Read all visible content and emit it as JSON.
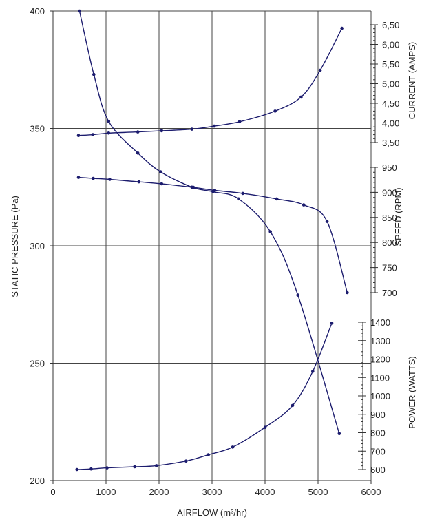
{
  "chart_data": {
    "type": "line",
    "title": "",
    "xlabel": "AIRFLOW (m³/hr)",
    "ylabel": "STATIC PRESSURE (Pa)",
    "grid": true,
    "x_axis": {
      "min": 0,
      "max": 6000,
      "ticks": [
        0,
        1000,
        2000,
        3000,
        4000,
        5000,
        6000
      ],
      "tick_labels": [
        "0",
        "1000",
        "2000",
        "3000",
        "4000",
        "5000",
        "6000"
      ]
    },
    "y_axis": {
      "min": 200,
      "max": 400,
      "ticks": [
        200,
        250,
        300,
        350,
        400
      ],
      "tick_labels": [
        "200",
        "250",
        "300",
        "350",
        "400"
      ]
    },
    "secondary_axes": [
      {
        "id": "current",
        "label": "CURRENT (AMPS)",
        "ticks": [
          3.5,
          4.0,
          4.5,
          5.0,
          5.5,
          6.0,
          6.5
        ],
        "tick_labels": [
          "3,50",
          "4,00",
          "4,50",
          "5,00",
          "5,50",
          "6,00",
          "6,50"
        ]
      },
      {
        "id": "speed",
        "label": "SPEED (RPM)",
        "ticks": [
          700,
          750,
          800,
          850,
          900,
          950
        ],
        "tick_labels": [
          "700",
          "750",
          "800",
          "850",
          "900",
          "950"
        ]
      },
      {
        "id": "power",
        "label": "POWER (WATTS)",
        "ticks": [
          600,
          700,
          800,
          900,
          1000,
          1100,
          1200,
          1300,
          1400
        ],
        "tick_labels": [
          "600",
          "700",
          "800",
          "900",
          "1000",
          "1100",
          "1200",
          "1300",
          "1400"
        ]
      }
    ],
    "series": [
      {
        "id": "pressure",
        "axis": "primary",
        "color": "#1c1c6e",
        "x": [
          500,
          770,
          1050,
          1600,
          2030,
          2620,
          3020,
          3500,
          4100,
          4620,
          5400
        ],
        "y": [
          400,
          373,
          353,
          339.5,
          331.5,
          325,
          323,
          320,
          306,
          279,
          220
        ]
      },
      {
        "id": "current",
        "axis": "current",
        "color": "#1c1c6e",
        "x": [
          480,
          750,
          1050,
          1600,
          2050,
          2620,
          3040,
          3520,
          4190,
          4680,
          5040,
          5450
        ],
        "y": [
          3.68,
          3.7,
          3.74,
          3.77,
          3.8,
          3.84,
          3.92,
          4.03,
          4.3,
          4.66,
          5.34,
          6.41
        ]
      },
      {
        "id": "speed",
        "axis": "speed",
        "color": "#1c1c6e",
        "x": [
          480,
          760,
          1070,
          1620,
          2050,
          2650,
          3050,
          3580,
          4220,
          4730,
          5170,
          5550
        ],
        "y": [
          930,
          928,
          926,
          921,
          917,
          910,
          904,
          898,
          887,
          875,
          842,
          700
        ]
      },
      {
        "id": "power",
        "axis": "power",
        "color": "#1c1c6e",
        "x": [
          450,
          720,
          1020,
          1540,
          1950,
          2510,
          2930,
          3390,
          4000,
          4520,
          4900,
          5260
        ],
        "y": [
          600,
          603,
          609,
          615,
          621,
          646,
          680,
          722,
          829,
          948,
          1133,
          1395
        ]
      }
    ]
  }
}
